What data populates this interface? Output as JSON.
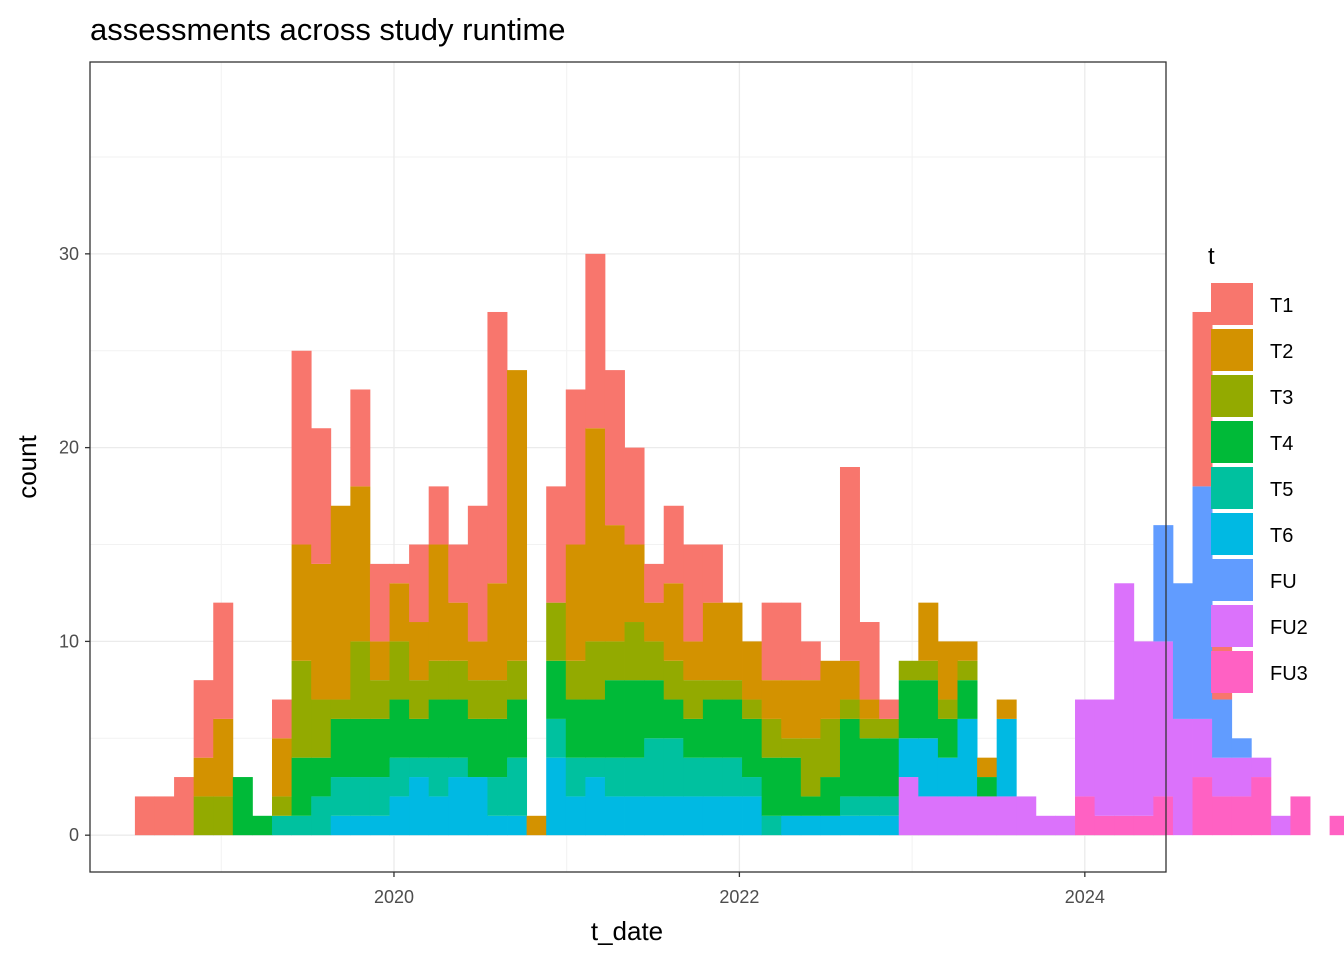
{
  "chart_data": {
    "type": "bar",
    "stacked": true,
    "title": "assessments across study runtime",
    "xlabel": "t_date",
    "ylabel": "count",
    "x_range": [
      2018.24,
      2024.47
    ],
    "ylim": [
      -1.9,
      39.9
    ],
    "x_ticks": [
      2020,
      2022,
      2024
    ],
    "x_tick_labels": [
      "2020",
      "2022",
      "2024"
    ],
    "y_ticks": [
      0,
      10,
      20,
      30
    ],
    "y_tick_labels": [
      "0",
      "10",
      "20",
      "30"
    ],
    "bin_start": 2018.5,
    "bin_width": 0.1134,
    "grid": true,
    "legend_title": "t",
    "legend_position": "right",
    "series": [
      {
        "name": "T1",
        "color": "#F8766D",
        "values": [
          2,
          2,
          3,
          4,
          6,
          0,
          0,
          2,
          10,
          7,
          0,
          5,
          4,
          1,
          4,
          3,
          3,
          7,
          14,
          0,
          0,
          6,
          8,
          9,
          8,
          5,
          2,
          4,
          5,
          3,
          0,
          0,
          4,
          4,
          2,
          0,
          10,
          4,
          1,
          0,
          0,
          0,
          0,
          0,
          0,
          0,
          0,
          0,
          0,
          0,
          0,
          0,
          0,
          0,
          9,
          4,
          0,
          0,
          0,
          0,
          0,
          0,
          0,
          0,
          0,
          0,
          0,
          0,
          0,
          0
        ]
      },
      {
        "name": "T2",
        "color": "#D39200",
        "values": [
          0,
          0,
          0,
          2,
          4,
          0,
          0,
          3,
          6,
          7,
          10,
          8,
          2,
          3,
          3,
          6,
          3,
          2,
          5,
          15,
          1,
          0,
          6,
          11,
          6,
          4,
          2,
          4,
          2,
          4,
          4,
          3,
          2,
          3,
          3,
          3,
          2,
          1,
          0,
          0,
          3,
          3,
          1,
          1,
          1,
          0,
          0,
          0,
          0,
          0,
          0,
          0,
          0,
          0,
          0,
          0,
          0,
          0,
          0,
          0,
          0,
          0,
          0,
          0,
          0,
          0,
          0,
          0,
          0,
          0
        ]
      },
      {
        "name": "T3",
        "color": "#93AA00",
        "values": [
          0,
          0,
          0,
          2,
          2,
          0,
          0,
          1,
          5,
          3,
          1,
          4,
          2,
          3,
          2,
          2,
          2,
          2,
          2,
          2,
          0,
          3,
          2,
          3,
          2,
          3,
          2,
          2,
          2,
          1,
          1,
          1,
          2,
          1,
          3,
          3,
          1,
          1,
          1,
          1,
          1,
          1,
          1,
          0,
          0,
          0,
          0,
          0,
          0,
          0,
          0,
          0,
          0,
          0,
          0,
          0,
          0,
          0,
          0,
          0,
          0,
          0,
          0,
          0,
          0,
          0,
          0,
          0,
          0,
          0
        ]
      },
      {
        "name": "T4",
        "color": "#00BA38",
        "values": [
          0,
          0,
          0,
          0,
          0,
          3,
          1,
          0,
          3,
          2,
          3,
          3,
          3,
          3,
          2,
          3,
          3,
          3,
          3,
          3,
          0,
          3,
          3,
          3,
          4,
          4,
          3,
          2,
          2,
          3,
          3,
          3,
          3,
          3,
          1,
          2,
          4,
          3,
          3,
          3,
          3,
          2,
          2,
          1,
          0,
          0,
          0,
          0,
          0,
          0,
          0,
          0,
          0,
          0,
          0,
          0,
          0,
          0,
          0,
          0,
          0,
          0,
          0,
          0,
          0,
          0,
          0,
          0,
          0,
          0
        ]
      },
      {
        "name": "T5",
        "color": "#00C19F",
        "values": [
          0,
          0,
          0,
          0,
          0,
          0,
          0,
          1,
          1,
          2,
          2,
          2,
          2,
          2,
          1,
          2,
          1,
          0,
          2,
          3,
          0,
          2,
          2,
          1,
          2,
          2,
          3,
          3,
          2,
          2,
          2,
          1,
          1,
          0,
          0,
          0,
          1,
          1,
          1,
          0,
          0,
          0,
          0,
          0,
          0,
          0,
          0,
          0,
          0,
          0,
          0,
          0,
          0,
          0,
          0,
          0,
          0,
          0,
          0,
          0,
          0,
          0,
          0,
          0,
          0,
          0,
          0,
          0,
          0,
          0
        ]
      },
      {
        "name": "T6",
        "color": "#00B9E3",
        "values": [
          0,
          0,
          0,
          0,
          0,
          0,
          0,
          0,
          0,
          0,
          1,
          1,
          1,
          2,
          3,
          2,
          3,
          3,
          1,
          1,
          0,
          4,
          2,
          3,
          2,
          2,
          2,
          2,
          2,
          2,
          2,
          2,
          0,
          1,
          1,
          1,
          1,
          1,
          1,
          2,
          3,
          2,
          4,
          0,
          4,
          0,
          0,
          0,
          0,
          0,
          0,
          0,
          0,
          0,
          0,
          0,
          0,
          0,
          0,
          0,
          0,
          0,
          0,
          0,
          0,
          0,
          0,
          0,
          0,
          0
        ]
      },
      {
        "name": "FU",
        "color": "#619CFF",
        "values": [
          0,
          0,
          0,
          0,
          0,
          0,
          0,
          0,
          0,
          0,
          0,
          0,
          0,
          0,
          0,
          0,
          0,
          0,
          0,
          0,
          0,
          0,
          0,
          0,
          0,
          0,
          0,
          0,
          0,
          0,
          0,
          0,
          0,
          0,
          0,
          0,
          0,
          0,
          0,
          0,
          0,
          0,
          0,
          0,
          0,
          0,
          0,
          0,
          0,
          0,
          0,
          0,
          6,
          7,
          12,
          3,
          1,
          0,
          0,
          0,
          0,
          0,
          0,
          0,
          0,
          0,
          0,
          0,
          0,
          0
        ]
      },
      {
        "name": "FU2",
        "color": "#DB72FB",
        "values": [
          0,
          0,
          0,
          0,
          0,
          0,
          0,
          0,
          0,
          0,
          0,
          0,
          0,
          0,
          0,
          0,
          0,
          0,
          0,
          0,
          0,
          0,
          0,
          0,
          0,
          0,
          0,
          0,
          0,
          0,
          0,
          0,
          0,
          0,
          0,
          0,
          0,
          0,
          0,
          3,
          2,
          2,
          2,
          2,
          2,
          2,
          1,
          1,
          5,
          6,
          12,
          9,
          8,
          6,
          3,
          2,
          2,
          1,
          1,
          0,
          0,
          0,
          0,
          0,
          0,
          0,
          0,
          0,
          0,
          0
        ]
      },
      {
        "name": "FU3",
        "color": "#FF61C3",
        "values": [
          0,
          0,
          0,
          0,
          0,
          0,
          0,
          0,
          0,
          0,
          0,
          0,
          0,
          0,
          0,
          0,
          0,
          0,
          0,
          0,
          0,
          0,
          0,
          0,
          0,
          0,
          0,
          0,
          0,
          0,
          0,
          0,
          0,
          0,
          0,
          0,
          0,
          0,
          0,
          0,
          0,
          0,
          0,
          0,
          0,
          0,
          0,
          0,
          2,
          1,
          1,
          1,
          2,
          0,
          3,
          2,
          2,
          3,
          0,
          2,
          0,
          1,
          0,
          0,
          0,
          0,
          0,
          0,
          0,
          0
        ]
      }
    ]
  }
}
